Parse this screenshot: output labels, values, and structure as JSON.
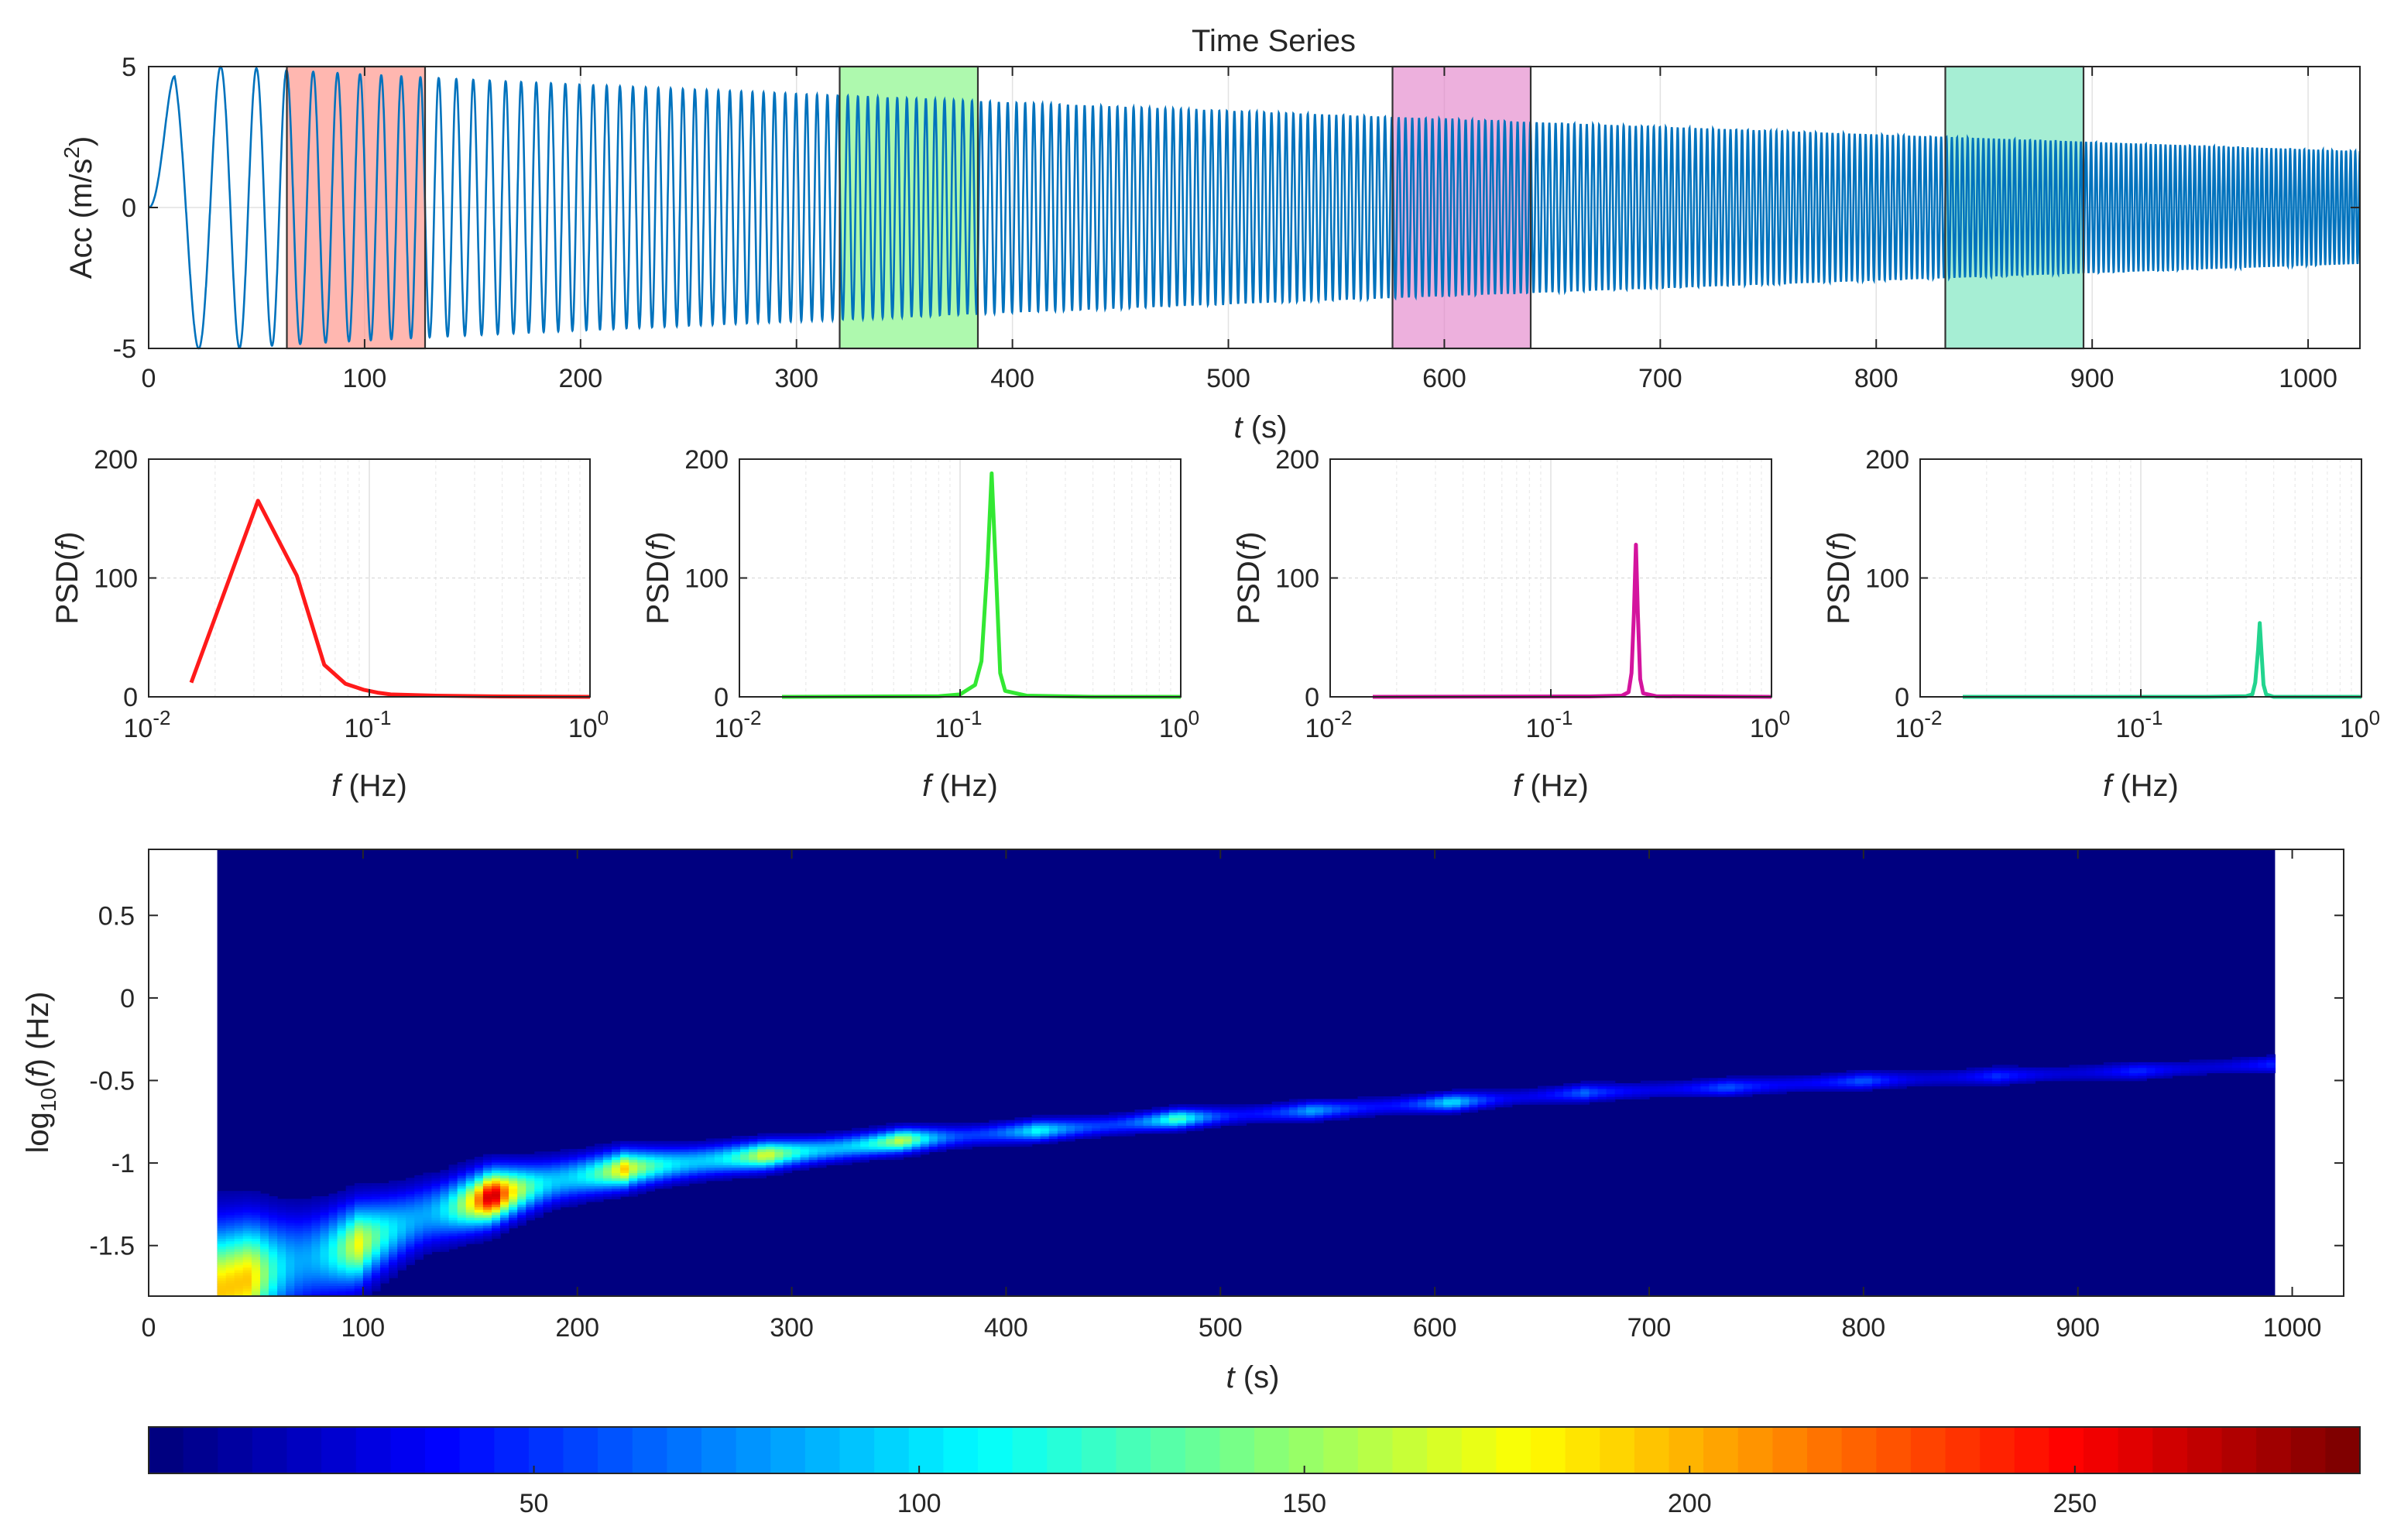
{
  "chart_data": [
    {
      "type": "line",
      "title": "Time Series",
      "xlabel_var": "t",
      "xlabel_unit": "(s)",
      "ylabel_main": "Acc (m/s",
      "ylabel_sup": "2",
      "ylabel_close": ")",
      "xlim": [
        0,
        1024
      ],
      "ylim": [
        -5,
        5
      ],
      "xticks": [
        0,
        100,
        200,
        300,
        400,
        500,
        600,
        700,
        800,
        900,
        1000
      ],
      "yticks": [
        -5,
        0,
        5
      ],
      "grid": true,
      "series": [
        {
          "description": "chirp: frequency rises from ~0.015 Hz to ~0.47 Hz over the record, amplitude decays from 5 to about 2",
          "color": "#0072BD",
          "t_start": 0,
          "t_end": 1024,
          "amplitude_start": 5,
          "amplitude_end": 2
        }
      ],
      "windows": [
        {
          "t0": 64,
          "t1": 128,
          "color": "#FF8A80"
        },
        {
          "t0": 320,
          "t1": 384,
          "color": "#7CF57C"
        },
        {
          "t0": 576,
          "t1": 640,
          "color": "#E27FC8"
        },
        {
          "t0": 832,
          "t1": 896,
          "color": "#6FE3B9"
        }
      ]
    },
    {
      "type": "line",
      "xscale": "log",
      "xlim": [
        0.01,
        1
      ],
      "ylim": [
        0,
        200
      ],
      "xticks": [
        0.01,
        0.1,
        1
      ],
      "xtick_base": "10",
      "xtick_exps": [
        "-2",
        "-1",
        "0"
      ],
      "yticks": [
        0,
        100,
        200
      ],
      "xlabel_var": "f",
      "xlabel_unit": "(Hz)",
      "ylabel_pre": "PSD(",
      "ylabel_var": "f",
      "ylabel_post": ")",
      "grid": true,
      "panels": [
        {
          "color": "#FF1A1A",
          "points": [
            [
              0.0156,
              12
            ],
            [
              0.0313,
              165
            ],
            [
              0.0469,
              102
            ],
            [
              0.0625,
              27
            ],
            [
              0.078,
              11
            ],
            [
              0.094,
              6
            ],
            [
              0.109,
              3.5
            ],
            [
              0.125,
              2
            ],
            [
              0.2,
              1
            ],
            [
              0.4,
              0.3
            ],
            [
              1,
              0
            ]
          ]
        },
        {
          "color": "#33E833",
          "points": [
            [
              0.0156,
              0
            ],
            [
              0.08,
              0.5
            ],
            [
              0.1,
              2
            ],
            [
              0.117,
              10
            ],
            [
              0.125,
              30
            ],
            [
              0.133,
              110
            ],
            [
              0.139,
              188
            ],
            [
              0.145,
              110
            ],
            [
              0.152,
              20
            ],
            [
              0.16,
              5
            ],
            [
              0.2,
              1
            ],
            [
              0.4,
              0
            ],
            [
              1,
              0
            ]
          ]
        },
        {
          "color": "#D4149E",
          "points": [
            [
              0.0156,
              0
            ],
            [
              0.15,
              0.3
            ],
            [
              0.21,
              1
            ],
            [
              0.225,
              4
            ],
            [
              0.232,
              20
            ],
            [
              0.238,
              70
            ],
            [
              0.243,
              128
            ],
            [
              0.248,
              70
            ],
            [
              0.254,
              15
            ],
            [
              0.262,
              3
            ],
            [
              0.3,
              0.5
            ],
            [
              1,
              0
            ]
          ]
        },
        {
          "color": "#22D48E",
          "points": [
            [
              0.0156,
              0
            ],
            [
              0.2,
              0
            ],
            [
              0.3,
              0.5
            ],
            [
              0.32,
              2
            ],
            [
              0.33,
              12
            ],
            [
              0.34,
              40
            ],
            [
              0.346,
              62
            ],
            [
              0.352,
              38
            ],
            [
              0.36,
              10
            ],
            [
              0.37,
              2
            ],
            [
              0.4,
              0
            ],
            [
              1,
              0
            ]
          ]
        }
      ]
    },
    {
      "type": "heatmap",
      "xlabel_var": "t",
      "xlabel_unit": "(s)",
      "ylabel_pre": "log",
      "ylabel_sub": "10",
      "ylabel_mid": "(",
      "ylabel_var": "f",
      "ylabel_post": ") (Hz)",
      "xlim": [
        0,
        1024
      ],
      "ylim": [
        -1.8062,
        0.9
      ],
      "data_x_range": [
        32,
        992
      ],
      "xticks": [
        0,
        100,
        200,
        300,
        400,
        500,
        600,
        700,
        800,
        900,
        1000
      ],
      "yticks": [
        0.5,
        0,
        -0.5,
        -1,
        -1.5
      ],
      "ytick_labels": [
        "0.5",
        "0",
        "-0.5",
        "-1",
        "-1.5"
      ],
      "colormap": "jet",
      "clim": [
        0,
        287
      ],
      "ridge": [
        [
          32,
          -1.78
        ],
        [
          64,
          -1.62
        ],
        [
          96,
          -1.5
        ],
        [
          128,
          -1.32
        ],
        [
          160,
          -1.2
        ],
        [
          192,
          -1.1
        ],
        [
          224,
          -1.03
        ],
        [
          256,
          -0.99
        ],
        [
          288,
          -0.95
        ],
        [
          320,
          -0.91
        ],
        [
          352,
          -0.86
        ],
        [
          384,
          -0.83
        ],
        [
          416,
          -0.8
        ],
        [
          448,
          -0.77
        ],
        [
          480,
          -0.73
        ],
        [
          544,
          -0.68
        ],
        [
          608,
          -0.63
        ],
        [
          672,
          -0.57
        ],
        [
          736,
          -0.54
        ],
        [
          800,
          -0.5
        ],
        [
          864,
          -0.47
        ],
        [
          928,
          -0.44
        ],
        [
          992,
          -0.4
        ]
      ],
      "peaks": [
        {
          "t": 48,
          "logf": -1.8,
          "v": 195
        },
        {
          "t": 96,
          "logf": -1.5,
          "v": 150
        },
        {
          "t": 160,
          "logf": -1.2,
          "v": 285
        },
        {
          "t": 224,
          "logf": -1.03,
          "v": 170
        },
        {
          "t": 288,
          "logf": -0.95,
          "v": 175
        },
        {
          "t": 352,
          "logf": -0.86,
          "v": 165
        },
        {
          "t": 416,
          "logf": -0.8,
          "v": 95
        },
        {
          "t": 480,
          "logf": -0.73,
          "v": 135
        },
        {
          "t": 544,
          "logf": -0.68,
          "v": 70
        },
        {
          "t": 608,
          "logf": -0.63,
          "v": 105
        },
        {
          "t": 672,
          "logf": -0.57,
          "v": 55
        },
        {
          "t": 736,
          "logf": -0.54,
          "v": 60
        },
        {
          "t": 800,
          "logf": -0.5,
          "v": 62
        },
        {
          "t": 864,
          "logf": -0.47,
          "v": 45
        },
        {
          "t": 928,
          "logf": -0.44,
          "v": 48
        },
        {
          "t": 992,
          "logf": -0.4,
          "v": 45
        }
      ]
    },
    {
      "type": "colorbar",
      "colormap": "jet",
      "clim": [
        0,
        287
      ],
      "ticks": [
        50,
        100,
        150,
        200,
        250
      ]
    }
  ]
}
